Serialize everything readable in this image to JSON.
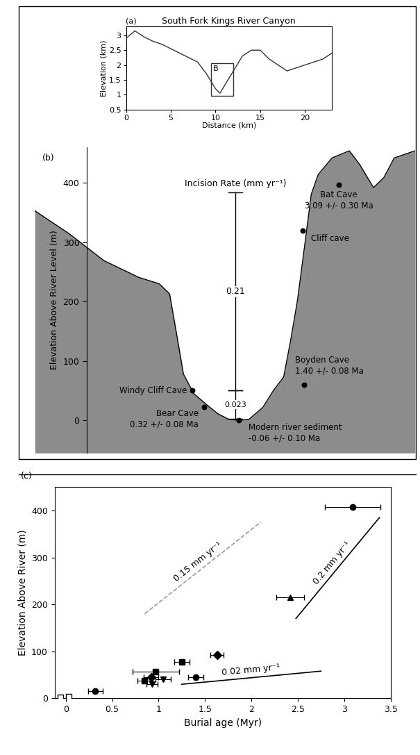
{
  "chart_data": [
    {
      "type": "line",
      "panel": "(a)",
      "title": "South Fork Kings River Canyon",
      "x_label": "Distance (km)",
      "y_label": "Elevation (km)",
      "x": [
        0,
        1,
        2,
        3,
        4,
        5,
        6,
        7,
        8,
        9,
        10,
        10.5,
        11,
        12,
        13,
        14,
        15,
        16,
        17,
        18,
        19,
        20,
        21,
        22,
        23
      ],
      "values": [
        2.9,
        3.15,
        2.95,
        2.8,
        2.7,
        2.55,
        2.4,
        2.25,
        2.1,
        1.7,
        1.2,
        1.05,
        1.3,
        1.8,
        2.3,
        2.5,
        2.5,
        2.2,
        2.0,
        1.8,
        1.9,
        2.0,
        2.1,
        2.2,
        2.4
      ],
      "color": "#333333",
      "xlim": [
        0,
        23
      ],
      "xticks": [
        0,
        5,
        10,
        15,
        20
      ],
      "ylim": [
        0.5,
        3.3
      ],
      "yticks": [
        0.5,
        1,
        1.5,
        2,
        2.5,
        3
      ],
      "box": {
        "label": "B",
        "x": [
          9.5,
          12
        ],
        "y": [
          0.95,
          2.05
        ]
      }
    },
    {
      "type": "cross_section",
      "panel": "(b)",
      "y_label": "Elevation Above River Level (m)",
      "x": [
        0,
        50,
        100,
        150,
        180,
        195,
        205,
        215,
        230,
        250,
        265,
        280,
        295,
        310,
        330,
        345,
        360,
        370,
        380,
        390,
        395,
        400,
        410,
        430,
        455,
        470,
        490,
        505,
        520,
        550
      ],
      "values": [
        353,
        314,
        269,
        241,
        230,
        213,
        146,
        78,
        45,
        25,
        11,
        2,
        0,
        2,
        22,
        50,
        73,
        134,
        202,
        291,
        336,
        381,
        414,
        442,
        454,
        431,
        392,
        409,
        442,
        454
      ],
      "color": "#8c8c8c",
      "xlim": [
        0,
        550
      ],
      "ylim": [
        -55,
        460
      ],
      "yticks": [
        0,
        100,
        200,
        300,
        400
      ],
      "tick_labels": "y",
      "incision_rate": {
        "title": "Incision Rate (mm yr⁻¹)",
        "x": 290,
        "segments": [
          {
            "value": 0.21,
            "range": [
              50,
              384
            ]
          },
          {
            "value": 0.023,
            "range": [
              3,
              50
            ]
          }
        ]
      },
      "caves": [
        {
          "name": "Bat Cave",
          "age": "3.09 +/- 0.30 Ma",
          "x": 440,
          "elevation": 397
        },
        {
          "name": "Cliff cave",
          "x": 388,
          "elevation": 320
        },
        {
          "name": "Boyden Cave",
          "age": "1.40 +/- 0.08 Ma",
          "x": 390,
          "elevation": 60
        },
        {
          "name": "Windy Cliff Cave",
          "x": 228,
          "elevation": 50
        },
        {
          "name": "Bear Cave",
          "age": "0.32 +/- 0.08 Ma",
          "x": 245,
          "elevation": 22
        },
        {
          "name": "Modern river sediment",
          "age": "-0.06 +/- 0.10 Ma",
          "x": 295,
          "elevation": 0
        }
      ]
    },
    {
      "type": "scatter",
      "panel": "(c)",
      "x_label": "Burial age (Myr)",
      "y_label": "Elevation Above River (m)",
      "xlim": [
        -0.12,
        3.5
      ],
      "xticks": [
        0,
        0.5,
        1,
        1.5,
        2,
        2.5,
        3,
        3.5
      ],
      "ylim": [
        0,
        450
      ],
      "yticks": [
        0,
        100,
        200,
        300,
        400
      ],
      "points": [
        {
          "x": -0.06,
          "y": 2,
          "marker": "square_open"
        },
        {
          "x": 0.03,
          "y": 3,
          "marker": "square_open"
        },
        {
          "x": 0.32,
          "y": 15,
          "xerr": 0.08,
          "marker": "circle"
        },
        {
          "x": 0.85,
          "y": 38,
          "xerr": 0.08,
          "marker": "square"
        },
        {
          "x": 0.92,
          "y": 45,
          "xerr": 0.08,
          "marker": "diamond"
        },
        {
          "x": 0.93,
          "y": 30,
          "xerr": 0.06,
          "marker": "triangle_down"
        },
        {
          "x": 1.05,
          "y": 40,
          "xerr": 0.08,
          "marker": "triangle_down"
        },
        {
          "x": 0.97,
          "y": 57,
          "xerr": 0.25,
          "marker": "square"
        },
        {
          "x": 1.25,
          "y": 78,
          "xerr": 0.08,
          "marker": "square"
        },
        {
          "x": 1.4,
          "y": 45,
          "xerr": 0.08,
          "marker": "circle"
        },
        {
          "x": 1.63,
          "y": 93,
          "xerr": 0.07,
          "marker": "diamond"
        },
        {
          "x": 2.42,
          "y": 215,
          "xerr": 0.15,
          "marker": "triangle_up"
        },
        {
          "x": 3.09,
          "y": 407,
          "xerr": 0.3,
          "marker": "circle"
        }
      ],
      "lines": [
        {
          "label": "0.15 mm yr⁻¹",
          "x": [
            0.85,
            2.1
          ],
          "y": [
            180,
            375
          ],
          "line_style": "dashed",
          "color": "#999999"
        },
        {
          "label": "0.2 mm yr⁻¹",
          "x": [
            2.48,
            3.38
          ],
          "y": [
            170,
            385
          ],
          "line_style": "solid",
          "color": "#000000"
        },
        {
          "label": "0.02 mm yr⁻¹",
          "x": [
            1.25,
            2.75
          ],
          "y": [
            30,
            58
          ],
          "line_style": "solid",
          "color": "#000000"
        }
      ]
    }
  ]
}
